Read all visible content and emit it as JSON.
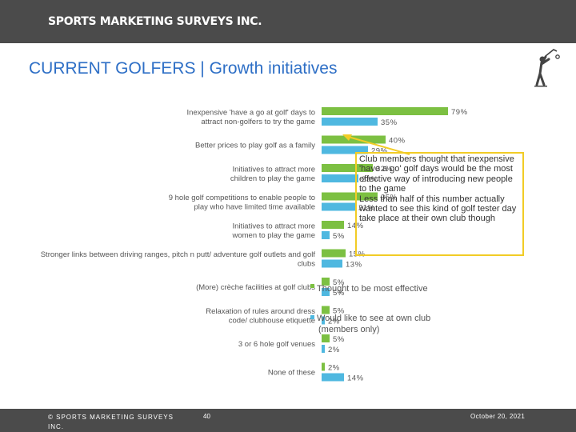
{
  "header": {
    "brand": "SPORTS MARKETING SURVEYS INC."
  },
  "slide_title": "CURRENT GOLFERS  |  Growth initiatives",
  "colors": {
    "series1": "#7cc042",
    "series2": "#4fb8e0",
    "title": "#2e6fc6",
    "callout_border": "#f2cc26",
    "bars_bg": "#4b4b4b"
  },
  "chart_data": {
    "type": "bar",
    "orientation": "horizontal",
    "categories": [
      [
        "Inexpensive 'have a go at golf' days to",
        "attract non-golfers to try the game"
      ],
      [
        "Better prices to play golf as a family"
      ],
      [
        "Initiatives to attract more",
        "children to play the game"
      ],
      [
        "9 hole golf competitions to enable people to",
        "play who have limited time available"
      ],
      [
        "Initiatives to attract more",
        "women to play the game"
      ],
      [
        "Stronger links between driving ranges, pitch n putt/ adventure golf outlets and golf",
        "clubs"
      ],
      [
        "(More) crèche facilities at golf clubs"
      ],
      [
        "Relaxation of rules around dress",
        "code/ clubhouse etiquette"
      ],
      [
        "3 or 6 hole golf venues"
      ],
      [
        "None of these"
      ]
    ],
    "series": [
      {
        "name": "Thought to be most effective",
        "values": [
          79,
          40,
          32,
          35,
          14,
          15,
          5,
          5,
          5,
          2
        ],
        "labels": [
          "79%",
          "40%",
          "32%",
          "35%",
          "14%",
          "15%",
          "5%",
          "5%",
          "5%",
          "2%"
        ]
      },
      {
        "name": [
          "Would like to see at own club",
          "(members only)"
        ],
        "values": [
          35,
          29,
          23,
          21,
          5,
          13,
          5,
          2,
          2,
          14
        ],
        "labels": [
          "35%",
          "29%",
          "23%",
          "21%",
          "5%",
          "13%",
          "5%",
          "2%",
          "2%",
          "14%"
        ]
      }
    ],
    "legend_placement": "center"
  },
  "callout": {
    "p1": "Club members thought that inexpensive 'have a go' golf days would be the most effective way of introducing new people to the game",
    "p2": "Less than half of this number actually wanted to see this kind of golf tester day take place at their own club though"
  },
  "footer": {
    "copyright": "© SPORTS MARKETING SURVEYS INC.",
    "page": "40",
    "date": "October 20, 2021"
  }
}
